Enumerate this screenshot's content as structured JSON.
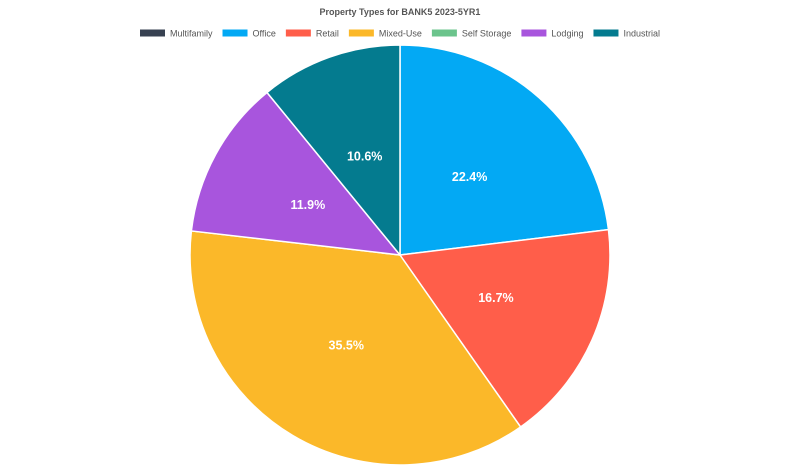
{
  "chart_data": {
    "type": "pie",
    "title": "Property Types for BANK5 2023-5YR1",
    "legend_position": "top",
    "start_angle_deg": 0,
    "direction": "clockwise",
    "categories": [
      "Multifamily",
      "Office",
      "Retail",
      "Mixed-Use",
      "Self Storage",
      "Lodging",
      "Industrial"
    ],
    "values": [
      0,
      22.4,
      16.7,
      35.5,
      0,
      11.9,
      10.6
    ],
    "labels": [
      "",
      "22.4%",
      "16.7%",
      "35.5%",
      "",
      "11.9%",
      "10.6%"
    ],
    "colors": [
      "#374151",
      "#03a9f4",
      "#ff5e4a",
      "#fbb829",
      "#6bc48c",
      "#a855dd",
      "#047b8f"
    ]
  }
}
